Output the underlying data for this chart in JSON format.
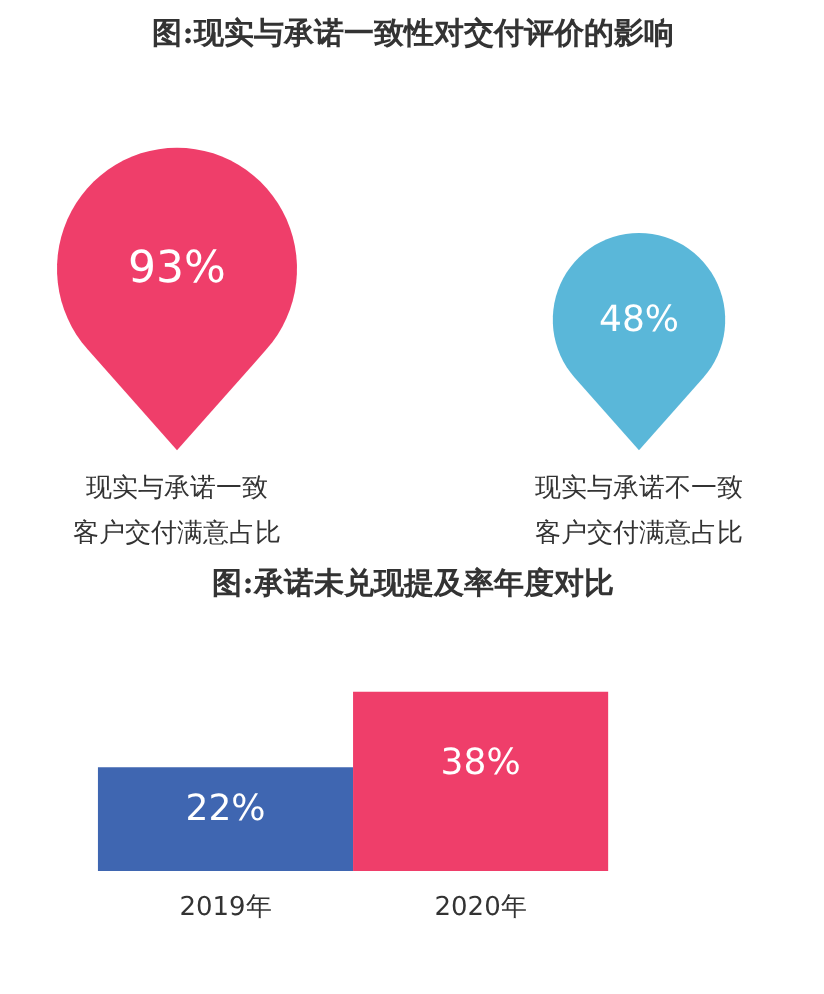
{
  "chart_data": [
    {
      "type": "other",
      "title": "图:现实与承诺一致性对交付评价的影响",
      "categories": [
        "现实与承诺一致客户交付满意占比",
        "现实与承诺不一致客户交付满意占比"
      ],
      "values": [
        93,
        48
      ],
      "value_labels": [
        "93%",
        "48%"
      ],
      "colors": [
        "#ef3e6a",
        "#5ab7d9"
      ]
    },
    {
      "type": "bar",
      "title": "图:承诺未兑现提及率年度对比",
      "categories": [
        "2019年",
        "2020年"
      ],
      "values": [
        22,
        38
      ],
      "value_labels": [
        "22%",
        "38%"
      ],
      "colors": [
        "#3f66b1",
        "#ef3e6a"
      ]
    }
  ]
}
